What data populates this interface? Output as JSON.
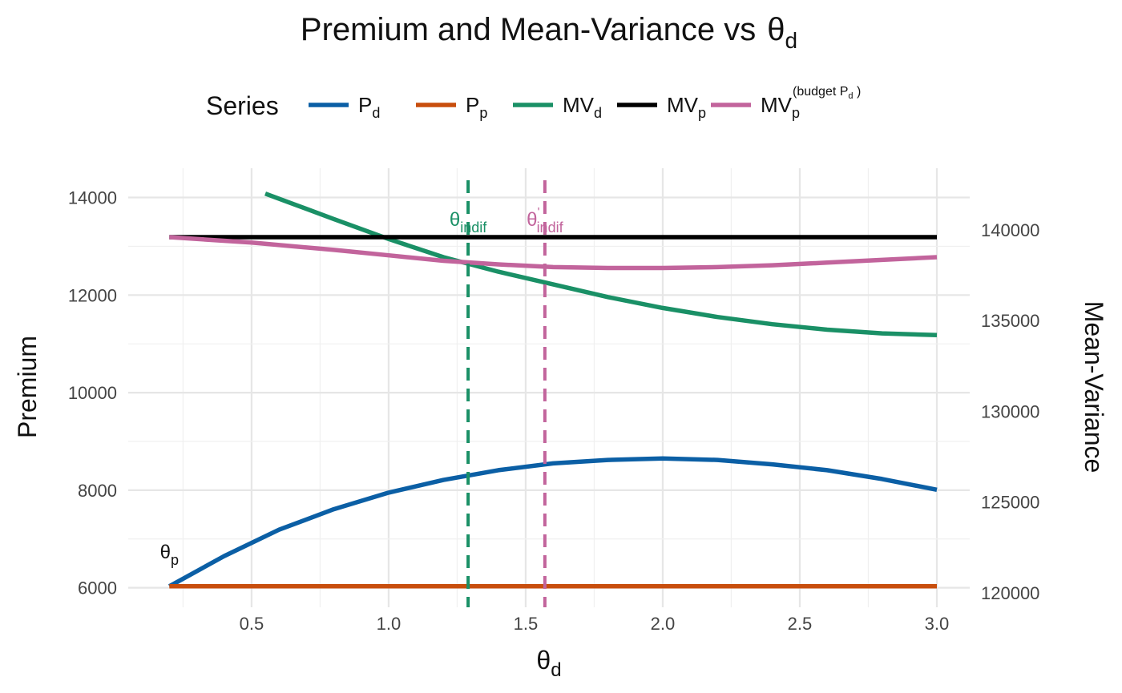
{
  "chart_data": {
    "type": "line",
    "title": "Premium and Mean-Variance vs",
    "title_symbol": "θ",
    "title_symbol_sub": "d",
    "xlabel": "θ",
    "xlabel_sub": "d",
    "ylabel": "Premium",
    "y2label": "Mean-Variance",
    "xlim": [
      0.05,
      3.12
    ],
    "ylim": [
      5600,
      14600
    ],
    "y2lim": [
      119200,
      143400
    ],
    "x_ticks": [
      0.5,
      1.0,
      1.5,
      2.0,
      2.5,
      3.0
    ],
    "x_tick_labels": [
      "0.5",
      "1.0",
      "1.5",
      "2.0",
      "2.5",
      "3.0"
    ],
    "y_ticks": [
      6000,
      8000,
      10000,
      12000,
      14000
    ],
    "y_tick_labels": [
      "6000",
      "8000",
      "10000",
      "12000",
      "14000"
    ],
    "y2_ticks": [
      120000,
      125000,
      130000,
      135000,
      140000
    ],
    "y2_tick_labels": [
      "120000",
      "125000",
      "130000",
      "135000",
      "140000"
    ],
    "grid": true,
    "legend": {
      "title": "Series",
      "position": "top",
      "items": [
        {
          "key": "Pd",
          "main": "P",
          "sub": "d",
          "sup": "",
          "sup_sub": "",
          "sup_end": "",
          "color": "#0b5fa5"
        },
        {
          "key": "Pp",
          "main": "P",
          "sub": "p",
          "sup": "",
          "sup_sub": "",
          "sup_end": "",
          "color": "#c84e0d"
        },
        {
          "key": "MVd",
          "main": "MV",
          "sub": "d",
          "sup": "",
          "sup_sub": "",
          "sup_end": "",
          "color": "#1a9066"
        },
        {
          "key": "MVp",
          "main": "MV",
          "sub": "p",
          "sup": "",
          "sup_sub": "",
          "sup_end": "",
          "color": "#000000"
        },
        {
          "key": "MVpb",
          "main": "MV",
          "sub": "p",
          "sup": "(budget  P",
          "sup_sub": "d",
          "sup_end": " )",
          "color": "#c2649c"
        }
      ]
    },
    "series": [
      {
        "key": "Pd",
        "axis": "left",
        "color": "#0b5fa5",
        "x": [
          0.2,
          0.4,
          0.6,
          0.8,
          1.0,
          1.2,
          1.4,
          1.6,
          1.8,
          2.0,
          2.2,
          2.4,
          2.6,
          2.8,
          3.0
        ],
        "values": [
          6030,
          6650,
          7190,
          7610,
          7950,
          8210,
          8410,
          8550,
          8620,
          8650,
          8620,
          8530,
          8410,
          8230,
          8010
        ]
      },
      {
        "key": "Pp",
        "axis": "left",
        "color": "#c84e0d",
        "x": [
          0.2,
          3.0
        ],
        "values": [
          6030,
          6030
        ]
      },
      {
        "key": "MVd",
        "axis": "right",
        "color": "#1a9066",
        "x": [
          0.55,
          0.8,
          1.0,
          1.2,
          1.4,
          1.6,
          1.8,
          2.0,
          2.2,
          2.4,
          2.6,
          2.8,
          3.0
        ],
        "values": [
          142000,
          140600,
          139500,
          138500,
          137700,
          137000,
          136300,
          135700,
          135200,
          134800,
          134500,
          134300,
          134200
        ]
      },
      {
        "key": "MVp",
        "axis": "right",
        "color": "#000000",
        "x": [
          0.2,
          3.0
        ],
        "values": [
          139600,
          139600
        ]
      },
      {
        "key": "MVpb",
        "axis": "right",
        "color": "#c2649c",
        "x": [
          0.2,
          0.5,
          0.8,
          1.0,
          1.2,
          1.4,
          1.6,
          1.8,
          2.0,
          2.2,
          2.4,
          2.6,
          2.8,
          3.0
        ],
        "values": [
          139600,
          139300,
          138900,
          138600,
          138300,
          138100,
          137950,
          137900,
          137900,
          137950,
          138050,
          138200,
          138350,
          138500
        ]
      }
    ],
    "vlines": [
      {
        "x": 1.29,
        "color": "#1a9066",
        "label": "θ",
        "label_sub": "indif",
        "label_sup": ""
      },
      {
        "x": 1.57,
        "color": "#c2649c",
        "label": "θ",
        "label_sub": "indif",
        "label_sup": "'"
      }
    ],
    "annotations": [
      {
        "x": 0.2,
        "y": 6600,
        "text": "θ",
        "sub": "p",
        "color": "#111111"
      }
    ]
  }
}
